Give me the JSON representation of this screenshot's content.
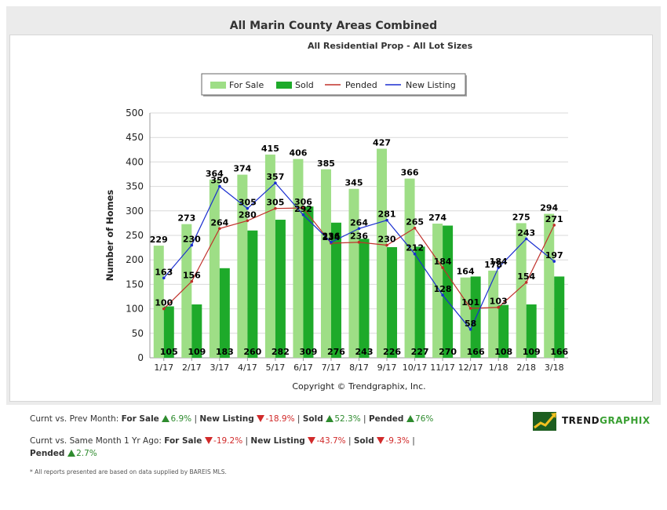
{
  "title": "All Marin County Areas Combined",
  "subtitle": "All Residential Prop - All Lot Sizes",
  "copyright": "Copyright © Trendgraphix, Inc.",
  "chart_data": {
    "type": "bar",
    "ylabel": "Number of Homes",
    "xlabel": "",
    "ylim": [
      0,
      500
    ],
    "yticks": [
      0,
      50,
      100,
      150,
      200,
      250,
      300,
      350,
      400,
      450,
      500
    ],
    "categories": [
      "1/17",
      "2/17",
      "3/17",
      "4/17",
      "5/17",
      "6/17",
      "7/17",
      "8/17",
      "9/17",
      "10/17",
      "11/17",
      "12/17",
      "1/18",
      "2/18",
      "3/18"
    ],
    "legend_position": "top-center",
    "series": [
      {
        "name": "For Sale",
        "kind": "bar",
        "color": "#9ede86",
        "values": [
          229,
          273,
          364,
          374,
          415,
          406,
          385,
          345,
          427,
          366,
          274,
          164,
          178,
          275,
          294
        ]
      },
      {
        "name": "Sold",
        "kind": "bar",
        "color": "#1eaa2a",
        "values": [
          105,
          109,
          183,
          260,
          282,
          309,
          276,
          243,
          226,
          227,
          270,
          166,
          108,
          109,
          166
        ]
      },
      {
        "name": "Pended",
        "kind": "line",
        "color": "#c0302a",
        "values": [
          100,
          156,
          264,
          280,
          305,
          306,
          234,
          236,
          230,
          265,
          184,
          101,
          103,
          154,
          271
        ]
      },
      {
        "name": "New Listing",
        "kind": "line",
        "color": "#1a2fd0",
        "values": [
          163,
          230,
          350,
          305,
          357,
          292,
          236,
          264,
          281,
          212,
          128,
          58,
          184,
          243,
          197
        ]
      }
    ]
  },
  "stats": {
    "prev_month": {
      "label": "Curnt vs. Prev Month:",
      "items": [
        {
          "name": "For Sale",
          "dir": "up",
          "value": "6.9%"
        },
        {
          "name": "New Listing",
          "dir": "down",
          "value": "-18.9%"
        },
        {
          "name": "Sold",
          "dir": "up",
          "value": "52.3%"
        },
        {
          "name": "Pended",
          "dir": "up",
          "value": "76%"
        }
      ]
    },
    "year_ago": {
      "label": "Curnt vs. Same Month 1 Yr Ago:",
      "items": [
        {
          "name": "For Sale",
          "dir": "down",
          "value": "-19.2%"
        },
        {
          "name": "New Listing",
          "dir": "down",
          "value": "-43.7%"
        },
        {
          "name": "Sold",
          "dir": "down",
          "value": "-9.3%"
        },
        {
          "name": "Pended",
          "dir": "up",
          "value": "2.7%"
        }
      ]
    }
  },
  "footnote": "* All reports presented are based on data supplied by BAREIS MLS.",
  "logo": {
    "part1": "TREND",
    "part2": "GRAPHIX",
    "color1": "#1a1a1a",
    "color2": "#3aa033"
  }
}
